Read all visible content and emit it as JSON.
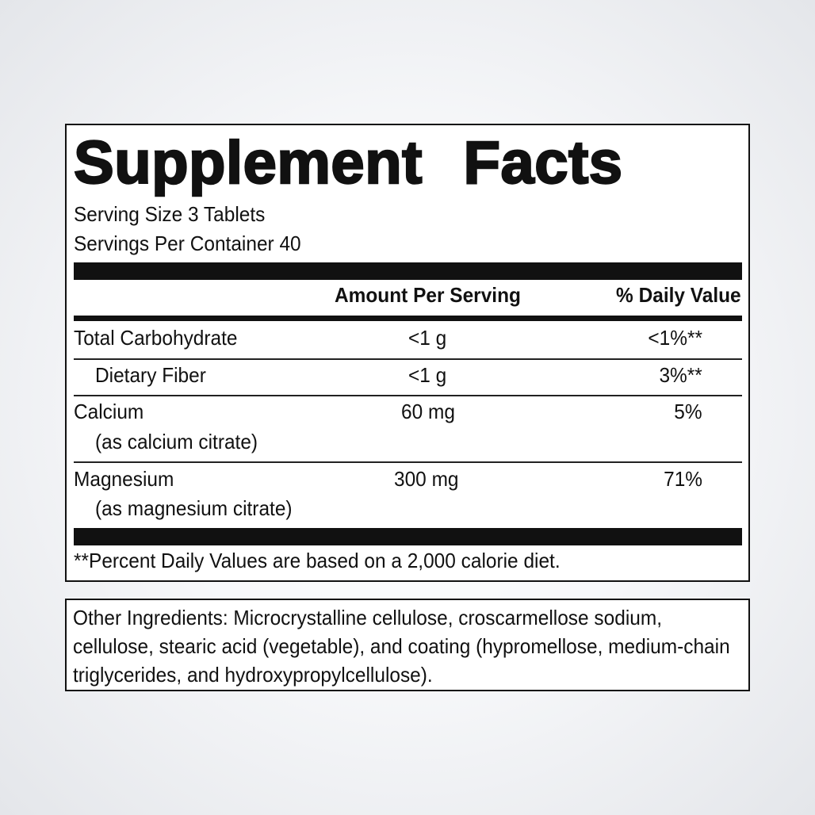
{
  "panel": {
    "title": "Supplement Facts",
    "serving_size": "Serving Size 3 Tablets",
    "servings_per_container": "Servings Per Container 40",
    "columns": {
      "amount": "Amount Per Serving",
      "daily_value": "% Daily Value"
    },
    "rows": [
      {
        "name": "Total Carbohydrate",
        "subname": "",
        "amount": "<1 g",
        "daily_value": "<1%**"
      },
      {
        "name": "Dietary Fiber",
        "subname": "",
        "amount": "<1 g",
        "daily_value": "3%**"
      },
      {
        "name": "Calcium",
        "subname": "(as calcium citrate)",
        "amount": "60 mg",
        "daily_value": "5%"
      },
      {
        "name": "Magnesium",
        "subname": "(as magnesium citrate)",
        "amount": "300 mg",
        "daily_value": "71%"
      }
    ],
    "footnote": "**Percent Daily Values are based on a 2,000 calorie diet."
  },
  "ingredients": {
    "text": "Other Ingredients: Microcrystalline cellulose, croscarmellose sodium, cellulose, stearic acid (vegetable), and coating (hypromellose, medium-chain triglycerides, and hydroxypropylcellulose)."
  }
}
